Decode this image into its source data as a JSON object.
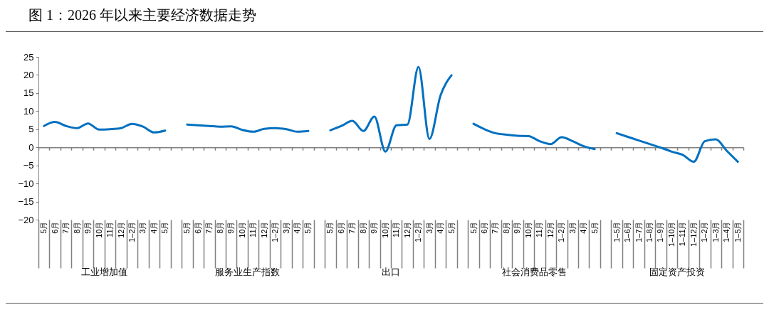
{
  "chart_data": {
    "type": "line",
    "title": "图 1：2026 年以来主要经济数据走势",
    "categories": [
      "5月",
      "6月",
      "7月",
      "8月",
      "9月",
      "10月",
      "11月",
      "12月",
      "1–2月",
      "3月",
      "4月",
      "5月",
      null,
      "5月",
      "6月",
      "7月",
      "8月",
      "9月",
      "10月",
      "11月",
      "12月",
      "1–2月",
      "3月",
      "4月",
      "5月",
      null,
      "5月",
      "6月",
      "7月",
      "8月",
      "9月",
      "10月",
      "11月",
      "12月",
      "1–2月",
      "3月",
      "4月",
      "5月",
      null,
      "5月",
      "6月",
      "7月",
      "8月",
      "9月",
      "10月",
      "11月",
      "12月",
      "1–2月",
      "3月",
      "4月",
      "5月",
      null,
      "1–5月",
      "1–6月",
      "1–7月",
      "1–8月",
      "1–9月",
      "1–10月",
      "1–11月",
      "1–12月",
      "1–2月",
      "1–3月",
      "1–4月",
      "1–5月"
    ],
    "series": [
      {
        "color": "#0070c0",
        "values": [
          5.9,
          7.0,
          5.9,
          5.3,
          6.6,
          4.9,
          5.0,
          5.3,
          6.5,
          5.7,
          4.1,
          4.6,
          null,
          6.3,
          6.1,
          5.9,
          5.7,
          5.8,
          4.8,
          4.3,
          5.1,
          5.3,
          5.0,
          4.3,
          4.5,
          null,
          4.7,
          5.9,
          7.3,
          4.5,
          8.5,
          -1.2,
          6.1,
          6.3,
          22.2,
          2.3,
          14.3,
          19.9,
          null,
          6.5,
          5.0,
          3.9,
          3.5,
          3.2,
          3.1,
          1.7,
          0.9,
          2.8,
          1.7,
          0.3,
          -0.5,
          null,
          3.9,
          2.9,
          1.9,
          0.9,
          -0.1,
          -1.2,
          -2.1,
          -4.0,
          1.7,
          2.2,
          -1.0,
          -4.0
        ]
      }
    ],
    "annotations": [
      "工业增加值",
      "服务业生产指数",
      "出口",
      "社会消费品零售",
      "固定资产投资"
    ],
    "ylim": [
      -20,
      25
    ],
    "yticks": [
      -20,
      -15,
      -10,
      -5,
      0,
      5,
      10,
      15,
      20,
      25
    ],
    "legend": false,
    "line_style": "solid"
  }
}
